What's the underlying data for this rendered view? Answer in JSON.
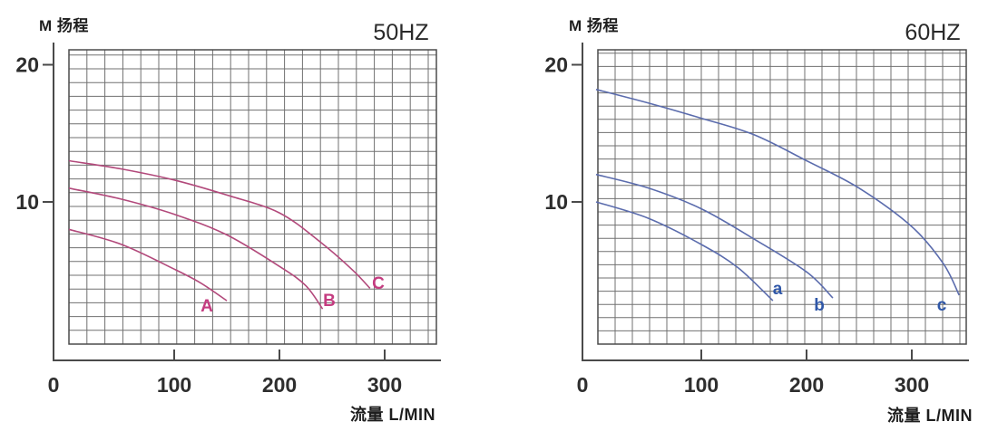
{
  "figure": {
    "description": "Pump performance curves, head (M) versus flow (L/MIN), 50HZ and 60HZ panels",
    "background_color": "#ffffff",
    "grid_color": "#707070",
    "axis_color": "#4a4a4a",
    "tick_text_color": "#2e2e2e"
  },
  "chart_data": [
    {
      "type": "line",
      "title": "50HZ",
      "ylabel": "M 扬程",
      "xlabel": "流量 L/MIN",
      "xlim": [
        0,
        350
      ],
      "ylim": [
        0,
        21
      ],
      "x_ticks": [
        0,
        100,
        200,
        300
      ],
      "y_ticks": [
        10,
        20
      ],
      "grid": true,
      "legend_position": "labels-at-curve-ends",
      "curve_color": "#b2497b",
      "label_color": "#c43c80",
      "series": [
        {
          "name": "A",
          "points": [
            [
              0,
              8.0
            ],
            [
              50,
              6.9
            ],
            [
              100,
              5.1
            ],
            [
              125,
              4.1
            ],
            [
              150,
              2.8
            ]
          ]
        },
        {
          "name": "B",
          "points": [
            [
              0,
              11.0
            ],
            [
              50,
              10.2
            ],
            [
              100,
              9.1
            ],
            [
              150,
              7.6
            ],
            [
              200,
              5.3
            ],
            [
              225,
              3.9
            ],
            [
              241,
              2.2
            ]
          ]
        },
        {
          "name": "C",
          "points": [
            [
              0,
              13.0
            ],
            [
              50,
              12.4
            ],
            [
              100,
              11.6
            ],
            [
              150,
              10.5
            ],
            [
              200,
              9.2
            ],
            [
              240,
              7.0
            ],
            [
              270,
              5.0
            ],
            [
              286,
              3.7
            ]
          ]
        }
      ]
    },
    {
      "type": "line",
      "title": "60HZ",
      "ylabel": "M 扬程",
      "xlabel": "流量 L/MIN",
      "xlim": [
        0,
        350
      ],
      "ylim": [
        0,
        21
      ],
      "x_ticks": [
        0,
        100,
        200,
        300
      ],
      "y_ticks": [
        10,
        20
      ],
      "grid": true,
      "legend_position": "labels-at-curve-ends",
      "curve_color": "#5b6cad",
      "label_color": "#2f57a8",
      "series": [
        {
          "name": "a",
          "points": [
            [
              0,
              10.0
            ],
            [
              50,
              8.8
            ],
            [
              100,
              6.9
            ],
            [
              135,
              5.2
            ],
            [
              168,
              2.8
            ]
          ]
        },
        {
          "name": "b",
          "points": [
            [
              0,
              12.0
            ],
            [
              50,
              11.0
            ],
            [
              100,
              9.5
            ],
            [
              150,
              7.3
            ],
            [
              200,
              4.9
            ],
            [
              225,
              3.0
            ]
          ]
        },
        {
          "name": "c",
          "points": [
            [
              0,
              18.2
            ],
            [
              50,
              17.2
            ],
            [
              100,
              16.1
            ],
            [
              150,
              14.9
            ],
            [
              200,
              13.0
            ],
            [
              250,
              11.0
            ],
            [
              300,
              8.2
            ],
            [
              330,
              5.5
            ],
            [
              345,
              3.2
            ]
          ]
        }
      ]
    }
  ]
}
